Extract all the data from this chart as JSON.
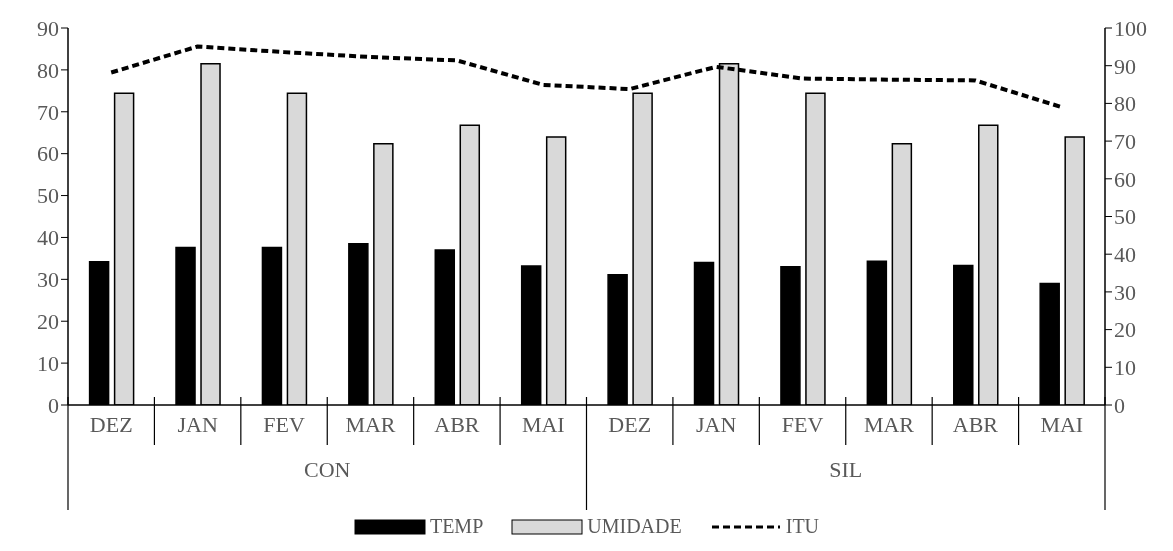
{
  "chart_data": {
    "type": "bar",
    "categories": [
      "DEZ",
      "JAN",
      "FEV",
      "MAR",
      "ABR",
      "MAI",
      "DEZ",
      "JAN",
      "FEV",
      "MAR",
      "ABR",
      "MAI"
    ],
    "annotations": [
      "CON",
      "SIL"
    ],
    "series": [
      {
        "name": "TEMP",
        "color": "#000000",
        "values": [
          34.2,
          37.6,
          37.6,
          38.5,
          37.0,
          33.2,
          31.1,
          34.0,
          33.0,
          34.3,
          33.3,
          29.0
        ]
      },
      {
        "name": "UMIDADE",
        "color": "#d9d9d9",
        "axis": "y2",
        "values": [
          82.7,
          90.5,
          82.7,
          69.3,
          74.2,
          71.1,
          82.7,
          90.5,
          82.7,
          69.3,
          74.2,
          71.1
        ]
      },
      {
        "name": "ITU",
        "type": "line",
        "color": "#000000",
        "axis": "y2",
        "line_style": "dashed",
        "values": [
          88.2,
          95.1,
          93.6,
          92.3,
          91.4,
          84.9,
          83.8,
          89.7,
          86.6,
          86.3,
          86.1,
          79.0
        ]
      }
    ],
    "ylim": [
      0,
      90
    ],
    "yticks": [
      0,
      10,
      20,
      30,
      40,
      50,
      60,
      70,
      80,
      90
    ],
    "y2lim": [
      0,
      100
    ],
    "y2ticks": [
      0,
      10,
      20,
      30,
      40,
      50,
      60,
      70,
      80,
      90,
      100
    ],
    "grid": false,
    "legend": "bottom"
  }
}
